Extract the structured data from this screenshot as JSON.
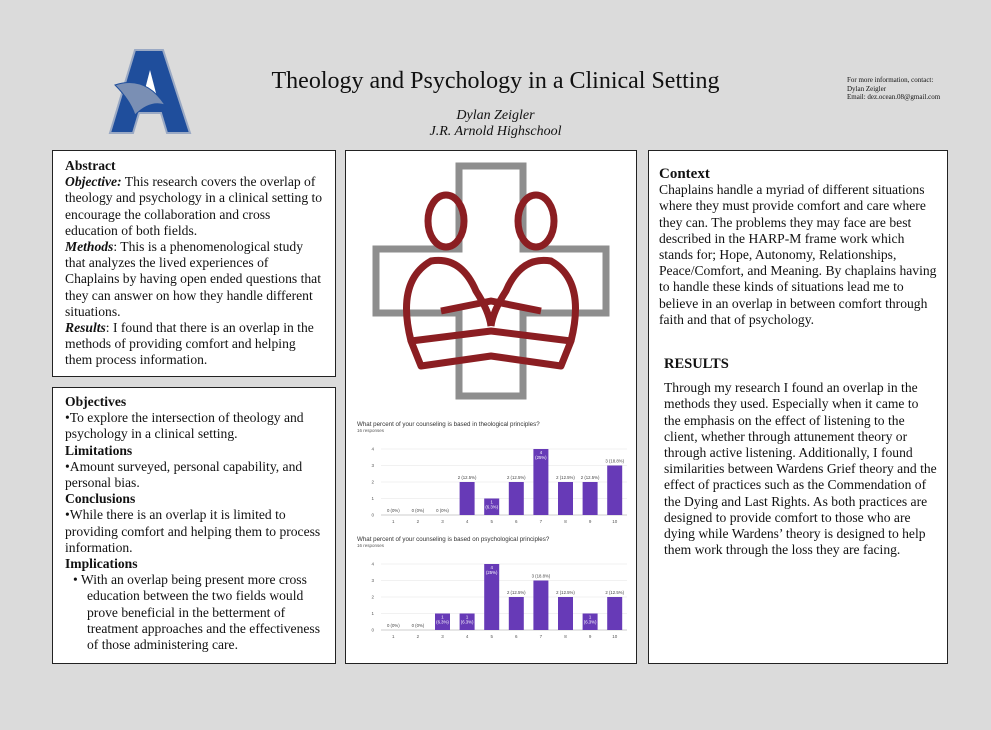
{
  "header": {
    "title": "Theology and Psychology in a Clinical Setting",
    "author": "Dylan Zeigler",
    "school": "J.R. Arnold Highschool",
    "contact": {
      "line1": "For more information, contact:",
      "line2": "Dylan Zeigler",
      "line3": "Email: dez.ocean.08@gmail.com"
    },
    "logo_letter": "A"
  },
  "abstract": {
    "heading": "Abstract",
    "objective_label": "Objective:",
    "objective": " This research covers the overlap of theology and psychology in a clinical setting to encourage the collaboration and cross education of both fields.",
    "methods_label": "Methods",
    "methods": ": This is a phenomenological study that analyzes the lived experiences of Chaplains by having open ended questions that they can answer on how they handle different situations.",
    "results_label": "Results",
    "results": ": I found that there is an overlap in the methods of providing comfort and helping them process information."
  },
  "objectives": {
    "heading": "Objectives",
    "text": "•To explore the intersection of theology and psychology in a clinical setting.",
    "limitations_heading": "Limitations",
    "limitations": "•Amount surveyed, personal capability, and personal bias.",
    "conclusions_heading": "Conclusions",
    "conclusions": "•While there is an overlap it is limited to providing comfort and helping them to process information.",
    "implications_heading": "Implications",
    "implications": "•  With an overlap being present more cross education between the two fields would prove beneficial in the betterment of treatment approaches and the effectiveness of those administering care."
  },
  "context": {
    "heading": "Context",
    "text": "Chaplains handle a myriad of different situations where they must provide comfort and care where they can. The problems they may face are best described in the HARP-M frame work which stands for; Hope, Autonomy, Relationships, Peace/Comfort, and Meaning. By chaplains having to handle these kinds of situations lead me to believe in an overlap in between comfort through faith and that of psychology."
  },
  "results": {
    "heading": "RESULTS",
    "text": "Through my research I found an overlap in the methods they used. Especially when it came to the emphasis on the effect of listening to the client, whether through attunement theory or through active listening. Additionally, I found similarities between Wardens Grief theory and the effect of practices such as the Commendation of the Dying and Last Rights. As both practices are designed to provide comfort to those who are dying while Wardens’ theory is designed to help them work through the loss they are facing."
  },
  "colors": {
    "logo_blue": "#1f4e9c",
    "cross_gray": "#8e8e8e",
    "figure_red": "#8b1e22",
    "bar": "#673ab7"
  },
  "chart_data": [
    {
      "type": "bar",
      "title": "What percent of your counseling is based in theological principles?",
      "subtitle": "16 responses",
      "categories": [
        "1",
        "2",
        "3",
        "4",
        "5",
        "6",
        "7",
        "8",
        "9",
        "10"
      ],
      "values": [
        0,
        0,
        0,
        2,
        1,
        2,
        4,
        2,
        2,
        3
      ],
      "labels": [
        "0 (0%)",
        "0 (0%)",
        "0 (0%)",
        "2 (12.5%)",
        "1 (6.3%)",
        "2 (12.5%)",
        "4 (25%)",
        "2 (12.5%)",
        "2 (12.5%)",
        "3 (18.8%)"
      ],
      "ylim": [
        0,
        4
      ],
      "yticks": [
        "0",
        "1",
        "2",
        "3",
        "4"
      ],
      "grid": true
    },
    {
      "type": "bar",
      "title": "What percent of your counseling is based on psychological principles?",
      "subtitle": "16 responses",
      "categories": [
        "1",
        "2",
        "3",
        "4",
        "5",
        "6",
        "7",
        "8",
        "9",
        "10"
      ],
      "values": [
        0,
        0,
        1,
        1,
        4,
        2,
        3,
        2,
        1,
        2
      ],
      "labels": [
        "0 (0%)",
        "0 (0%)",
        "1 (6.3%)",
        "1 (6.3%)",
        "4 (25%)",
        "2 (12.5%)",
        "3 (18.8%)",
        "2 (12.5%)",
        "1 (6.3%)",
        "2 (12.5%)"
      ],
      "ylim": [
        0,
        4
      ],
      "yticks": [
        "0",
        "1",
        "2",
        "3",
        "4"
      ],
      "grid": true
    }
  ]
}
